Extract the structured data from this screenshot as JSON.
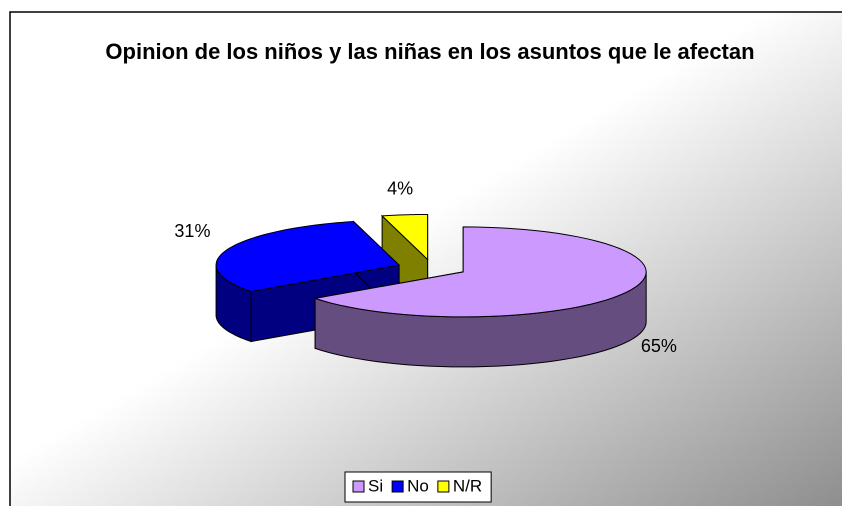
{
  "chart_data": {
    "type": "pie3d",
    "title": "Opinion de los niños y las niñas en los asuntos que le afectan",
    "categories": [
      "Si",
      "No",
      "N/R"
    ],
    "values": [
      65,
      31,
      4
    ],
    "value_labels": [
      "65%",
      "31%",
      "4%"
    ],
    "colors": [
      "#cc99ff",
      "#0000ff",
      "#ffff00"
    ],
    "legend": "bottom"
  }
}
